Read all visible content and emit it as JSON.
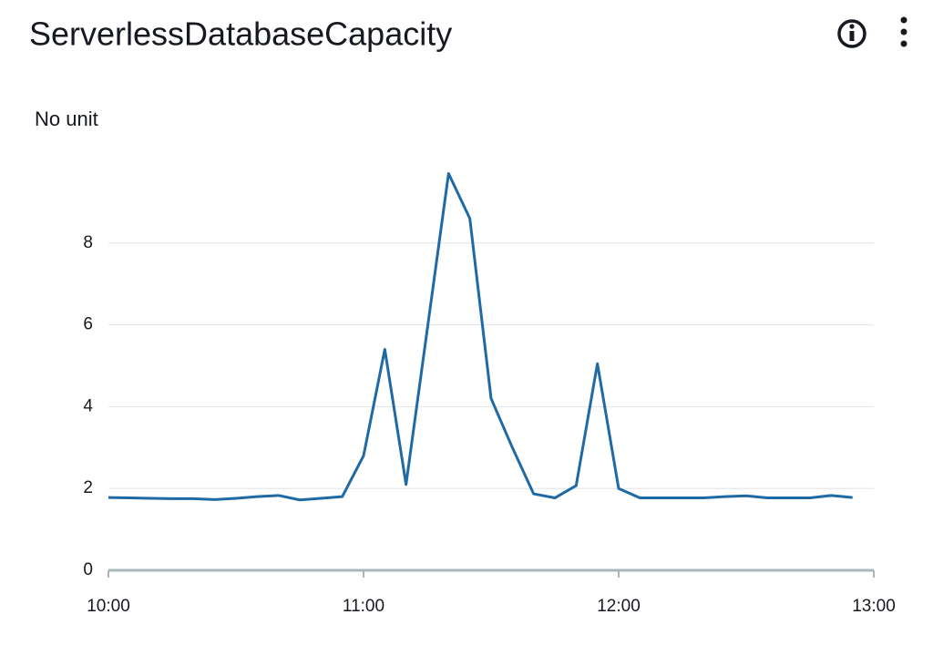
{
  "chart_data": {
    "type": "line",
    "title": "ServerlessDatabaseCapacity",
    "y_label": "No unit",
    "x": [
      "10:00",
      "10:05",
      "10:10",
      "10:15",
      "10:20",
      "10:25",
      "10:30",
      "10:35",
      "10:40",
      "10:45",
      "10:50",
      "10:55",
      "11:00",
      "11:05",
      "11:10",
      "11:15",
      "11:20",
      "11:25",
      "11:30",
      "11:35",
      "11:40",
      "11:45",
      "11:50",
      "11:55",
      "12:00",
      "12:05",
      "12:10",
      "12:15",
      "12:20",
      "12:25",
      "12:30",
      "12:35",
      "12:40",
      "12:45",
      "12:50",
      "12:55"
    ],
    "series": [
      {
        "color": "#1f6aa5",
        "values": [
          1.78,
          1.77,
          1.76,
          1.75,
          1.75,
          1.73,
          1.76,
          1.8,
          1.83,
          1.72,
          1.76,
          1.8,
          2.8,
          5.4,
          2.1,
          5.9,
          9.7,
          8.6,
          4.2,
          3.0,
          1.87,
          1.77,
          2.07,
          5.05,
          2.0,
          1.77,
          1.77,
          1.77,
          1.77,
          1.8,
          1.82,
          1.77,
          1.77,
          1.77,
          1.83,
          1.78
        ]
      }
    ],
    "xlim": [
      "10:00",
      "13:00"
    ],
    "xticks": [
      "10:00",
      "11:00",
      "12:00",
      "13:00"
    ],
    "ylim": [
      0,
      10
    ],
    "yticks": [
      0,
      2,
      4,
      6,
      8
    ],
    "grid": true
  }
}
